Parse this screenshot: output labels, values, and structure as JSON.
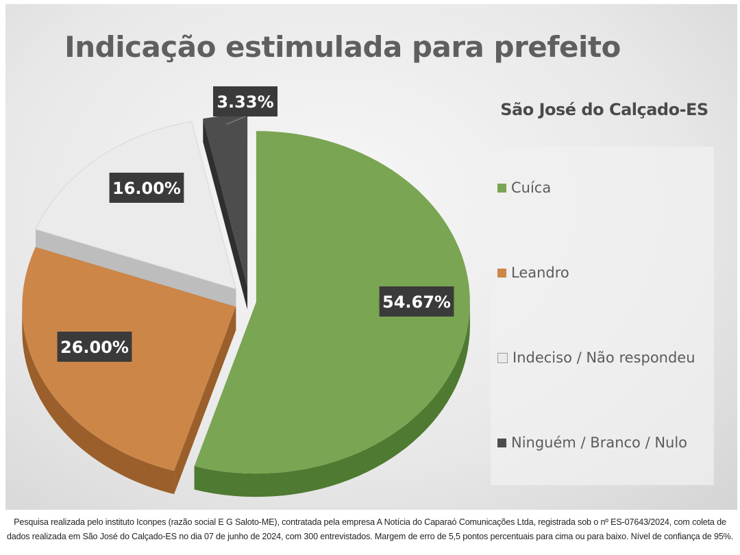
{
  "chart_data": {
    "type": "pie",
    "title": "Indicação estimulada para prefeito",
    "subtitle": "São José do Calçado-ES",
    "categories": [
      "Cuíca",
      "Leandro",
      "Indeciso / Não respondeu",
      "Ninguém / Branco / Nulo"
    ],
    "values": [
      54.67,
      26.0,
      16.0,
      3.33
    ],
    "data_labels": [
      "54.67%",
      "26.00%",
      "16.00%",
      "3.33%"
    ],
    "colors": [
      "#7aa552",
      "#cc8648",
      "#ebebeb",
      "#4d4d4d"
    ],
    "legend_position": "right"
  },
  "footnote": {
    "line1": "Pesquisa realizada pelo instituto Iconpes (razão social E G Saloto-ME), contratada pela empresa A Notícia do Caparaó Comunicações Ltda, registrada sob o nº ES-07643/2024, com coleta de",
    "line2": "dados realizada em São José do Calçado-ES no dia 07 de junho de 2024, com 300 entrevistados. Margem de erro de 5,5 pontos percentuais para cima ou para baixo. Nível de confiança de 95%."
  }
}
